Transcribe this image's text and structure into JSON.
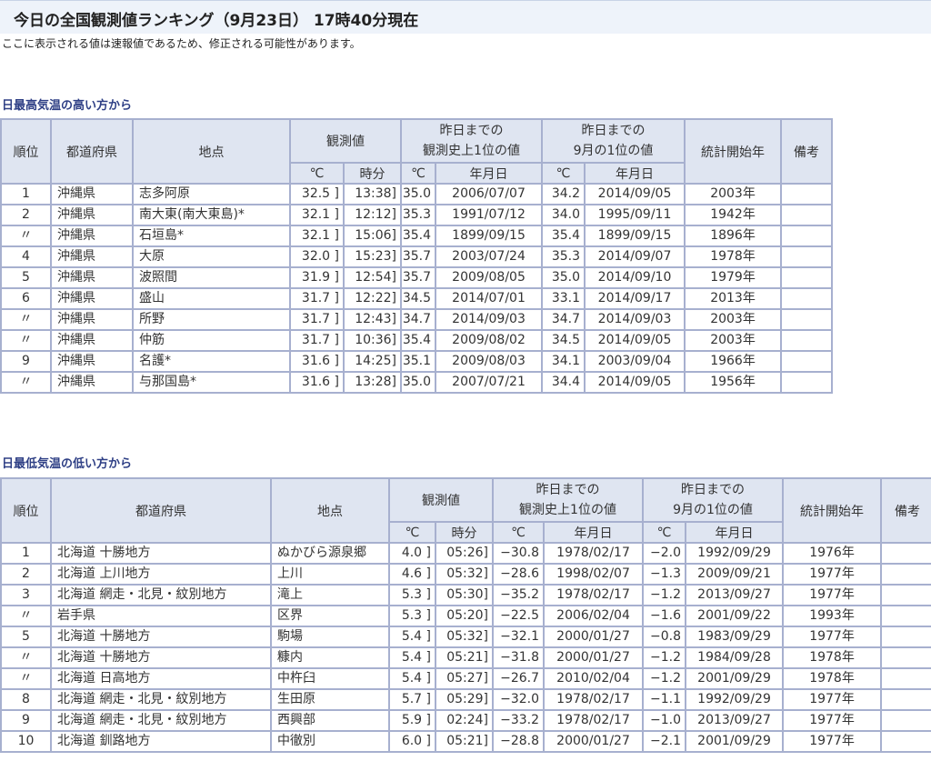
{
  "header": {
    "title": "今日の全国観測値ランキング（9月23日） 17時40分現在",
    "note": "ここに表示される値は速報値であるため、修正される可能性があります。"
  },
  "columns": {
    "rank": "順位",
    "pref": "都道府県",
    "place": "地点",
    "observed": "観測値",
    "record": "昨日までの\n観測史上1位の値",
    "month_record": "昨日までの\n9月の1位の値",
    "start": "統計開始年",
    "notes": "備考",
    "unit_c": "℃",
    "unit_time": "時分",
    "unit_date": "年月日"
  },
  "high": {
    "heading": "日最高気温の高い方から",
    "rows": [
      [
        "1",
        "沖縄県",
        "志多阿原",
        "32.5 ]",
        "13:38]",
        "35.0",
        "2006/07/07",
        "34.2",
        "2014/09/05",
        "2003年",
        ""
      ],
      [
        "2",
        "沖縄県",
        "南大東(南大東島)*",
        "32.1 ]",
        "12:12]",
        "35.3",
        "1991/07/12",
        "34.0",
        "1995/09/11",
        "1942年",
        ""
      ],
      [
        "〃",
        "沖縄県",
        "石垣島*",
        "32.1 ]",
        "15:06]",
        "35.4",
        "1899/09/15",
        "35.4",
        "1899/09/15",
        "1896年",
        ""
      ],
      [
        "4",
        "沖縄県",
        "大原",
        "32.0 ]",
        "15:23]",
        "35.7",
        "2003/07/24",
        "35.3",
        "2014/09/07",
        "1978年",
        ""
      ],
      [
        "5",
        "沖縄県",
        "波照間",
        "31.9 ]",
        "12:54]",
        "35.7",
        "2009/08/05",
        "35.0",
        "2014/09/10",
        "1979年",
        ""
      ],
      [
        "6",
        "沖縄県",
        "盛山",
        "31.7 ]",
        "12:22]",
        "34.5",
        "2014/07/01",
        "33.1",
        "2014/09/17",
        "2013年",
        ""
      ],
      [
        "〃",
        "沖縄県",
        "所野",
        "31.7 ]",
        "12:43]",
        "34.7",
        "2014/09/03",
        "34.7",
        "2014/09/03",
        "2003年",
        ""
      ],
      [
        "〃",
        "沖縄県",
        "仲筋",
        "31.7 ]",
        "10:36]",
        "35.4",
        "2009/08/02",
        "34.5",
        "2014/09/05",
        "2003年",
        ""
      ],
      [
        "9",
        "沖縄県",
        "名護*",
        "31.6 ]",
        "14:25]",
        "35.1",
        "2009/08/03",
        "34.1",
        "2003/09/04",
        "1966年",
        ""
      ],
      [
        "〃",
        "沖縄県",
        "与那国島*",
        "31.6 ]",
        "13:28]",
        "35.0",
        "2007/07/21",
        "34.4",
        "2014/09/05",
        "1956年",
        ""
      ]
    ]
  },
  "low": {
    "heading": "日最低気温の低い方から",
    "rows": [
      [
        "1",
        "北海道 十勝地方",
        "ぬかびら源泉郷",
        "4.0 ]",
        "05:26]",
        "−30.8",
        "1978/02/17",
        "−2.0",
        "1992/09/29",
        "1976年",
        ""
      ],
      [
        "2",
        "北海道 上川地方",
        "上川",
        "4.6 ]",
        "05:32]",
        "−28.6",
        "1998/02/07",
        "−1.3",
        "2009/09/21",
        "1977年",
        ""
      ],
      [
        "3",
        "北海道 網走・北見・紋別地方",
        "滝上",
        "5.3 ]",
        "05:30]",
        "−35.2",
        "1978/02/17",
        "−1.2",
        "2013/09/27",
        "1977年",
        ""
      ],
      [
        "〃",
        "岩手県",
        "区界",
        "5.3 ]",
        "05:20]",
        "−22.5",
        "2006/02/04",
        "−1.6",
        "2001/09/22",
        "1993年",
        ""
      ],
      [
        "5",
        "北海道 十勝地方",
        "駒場",
        "5.4 ]",
        "05:32]",
        "−32.1",
        "2000/01/27",
        "−0.8",
        "1983/09/29",
        "1977年",
        ""
      ],
      [
        "〃",
        "北海道 十勝地方",
        "糠内",
        "5.4 ]",
        "05:21]",
        "−31.8",
        "2000/01/27",
        "−1.2",
        "1984/09/28",
        "1978年",
        ""
      ],
      [
        "〃",
        "北海道 日高地方",
        "中杵臼",
        "5.4 ]",
        "05:27]",
        "−26.7",
        "2010/02/04",
        "−1.2",
        "2001/09/29",
        "1978年",
        ""
      ],
      [
        "8",
        "北海道 網走・北見・紋別地方",
        "生田原",
        "5.7 ]",
        "05:29]",
        "−32.0",
        "1978/02/17",
        "−1.1",
        "1992/09/29",
        "1977年",
        ""
      ],
      [
        "9",
        "北海道 網走・北見・紋別地方",
        "西興部",
        "5.9 ]",
        "02:24]",
        "−33.2",
        "1978/02/17",
        "−1.0",
        "2013/09/27",
        "1977年",
        ""
      ],
      [
        "10",
        "北海道 釧路地方",
        "中徹別",
        "6.0 ]",
        "05:21]",
        "−28.8",
        "2000/01/27",
        "−2.1",
        "2001/09/29",
        "1977年",
        ""
      ]
    ]
  }
}
